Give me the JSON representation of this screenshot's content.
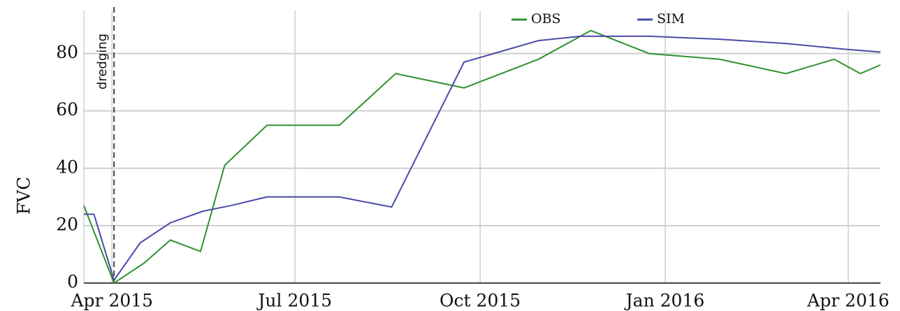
{
  "chart_data": {
    "type": "line",
    "ylabel": "FVC",
    "annotation": "dredging",
    "annotation_x": "2015-04-02",
    "series": [
      {
        "name": "OBS",
        "color": "#2f922f",
        "x": [
          "2015-03-18",
          "2015-04-02",
          "2015-04-17",
          "2015-04-30",
          "2015-05-15",
          "2015-05-27",
          "2015-06-17",
          "2015-07-23",
          "2015-08-20",
          "2015-09-23",
          "2015-10-30",
          "2015-11-25",
          "2015-12-24",
          "2016-01-28",
          "2016-03-01",
          "2016-03-25",
          "2016-04-07",
          "2016-04-17"
        ],
        "values": [
          27,
          0,
          7,
          15,
          11,
          41,
          55,
          55,
          73,
          68,
          78,
          88,
          80,
          78,
          73,
          78,
          73,
          76
        ]
      },
      {
        "name": "SIM",
        "color": "#4b4ba8",
        "x": [
          "2015-03-18",
          "2015-03-23",
          "2015-04-02",
          "2015-04-15",
          "2015-04-30",
          "2015-05-16",
          "2015-05-30",
          "2015-06-17",
          "2015-07-23",
          "2015-08-18",
          "2015-09-23",
          "2015-10-30",
          "2015-11-20",
          "2015-12-24",
          "2016-01-28",
          "2016-03-01",
          "2016-03-30",
          "2016-04-17"
        ],
        "values": [
          24,
          24,
          1,
          14,
          21,
          25,
          27,
          30,
          30,
          26.5,
          77,
          84.5,
          86,
          86,
          85,
          83.5,
          81.5,
          80.5
        ]
      }
    ],
    "xlim": [
      "2015-03-18",
      "2016-04-17"
    ],
    "xticks": [
      {
        "value": "2015-04",
        "label": "Apr 2015"
      },
      {
        "value": "2015-07",
        "label": "Jul 2015"
      },
      {
        "value": "2015-10",
        "label": "Oct 2015"
      },
      {
        "value": "2016-01",
        "label": "Jan 2016"
      },
      {
        "value": "2016-04",
        "label": "Apr 2016"
      }
    ],
    "ylim": [
      0,
      95
    ],
    "yticks": [
      0,
      20,
      40,
      60,
      80
    ],
    "grid": true,
    "legend": "top"
  }
}
